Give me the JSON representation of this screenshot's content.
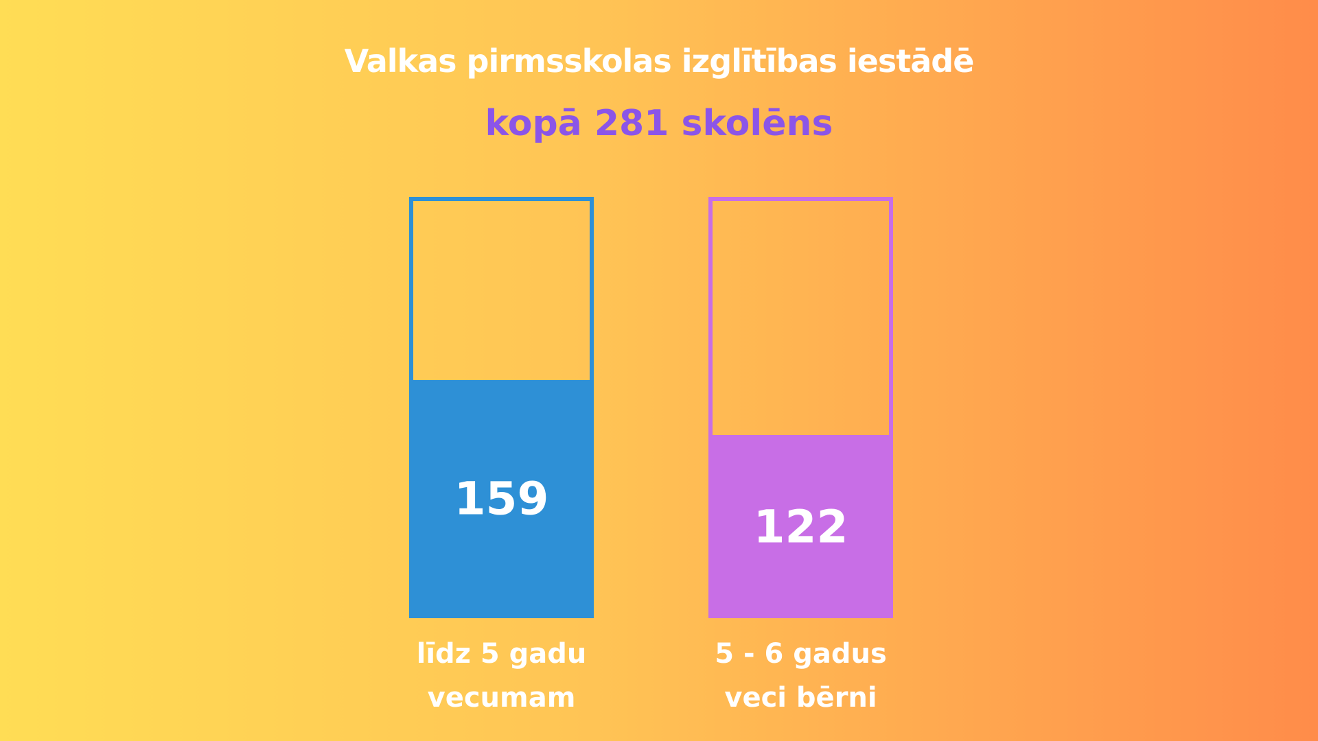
{
  "chart_data": {
    "type": "bar",
    "title": "Valkas pirmsskolas izglītības iestādē",
    "subtitle": "kopā 281 skolēns",
    "categories": [
      "līdz 5 gadu\nvecumam",
      "5 - 6 gadus\nveci bērni"
    ],
    "values": [
      159,
      122
    ],
    "colors": [
      "#2e90d6",
      "#c86ee6"
    ],
    "ylim": [
      0,
      281
    ]
  }
}
